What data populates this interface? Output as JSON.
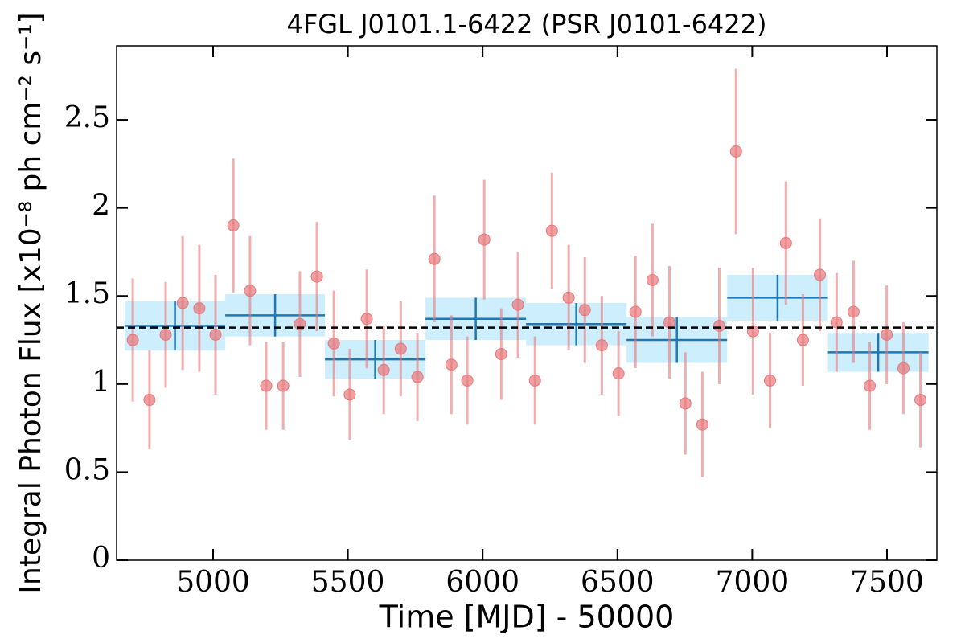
{
  "chart_data": {
    "type": "scatter",
    "title": "4FGL J0101.1-6422 (PSR J0101-6422)",
    "xlabel": "Time [MJD] - 50000",
    "ylabel": "Integral Photon Flux [x10⁻⁸ ph cm⁻² s⁻¹]",
    "xlim": [
      4642,
      7685
    ],
    "ylim": [
      0,
      2.92
    ],
    "xticks": [
      5000,
      5500,
      6000,
      6500,
      7000,
      7500
    ],
    "yticks": [
      0,
      0.5,
      1,
      1.5,
      2,
      2.5
    ],
    "series": [
      {
        "type": "scatter",
        "color": "#e8787a",
        "x": [
          4702,
          4764,
          4824,
          4887,
          4949,
          5009,
          5075,
          5137,
          5197,
          5260,
          5322,
          5385,
          5448,
          5507,
          5570,
          5633,
          5696,
          5758,
          5821,
          5884,
          5943,
          6006,
          6069,
          6131,
          6194,
          6257,
          6319,
          6379,
          6442,
          6504,
          6567,
          6630,
          6693,
          6752,
          6815,
          6878,
          6940,
          7003,
          7066,
          7125,
          7188,
          7251,
          7313,
          7376,
          7436,
          7499,
          7561,
          7624
        ],
        "values": [
          1.25,
          0.91,
          1.28,
          1.46,
          1.43,
          1.28,
          1.9,
          1.53,
          0.99,
          0.99,
          1.34,
          1.61,
          1.23,
          0.94,
          1.37,
          1.08,
          1.2,
          1.04,
          1.71,
          1.11,
          1.02,
          1.82,
          1.17,
          1.45,
          1.02,
          1.87,
          1.49,
          1.42,
          1.22,
          1.06,
          1.41,
          1.59,
          1.35,
          0.89,
          0.77,
          1.33,
          2.32,
          1.3,
          1.02,
          1.8,
          1.25,
          1.62,
          1.35,
          1.41,
          0.99,
          1.28,
          1.09,
          0.91
        ],
        "errors": [
          0.35,
          0.28,
          0.3,
          0.38,
          0.36,
          0.34,
          0.38,
          0.31,
          0.25,
          0.25,
          0.3,
          0.31,
          0.3,
          0.26,
          0.28,
          0.25,
          0.27,
          0.25,
          0.36,
          0.28,
          0.25,
          0.34,
          0.26,
          0.3,
          0.25,
          0.33,
          0.3,
          0.3,
          0.28,
          0.24,
          0.32,
          0.32,
          0.32,
          0.29,
          0.3,
          0.33,
          0.47,
          0.36,
          0.27,
          0.35,
          0.26,
          0.32,
          0.28,
          0.29,
          0.25,
          0.28,
          0.26,
          0.27
        ]
      },
      {
        "type": "binned",
        "color": "#1f77b4",
        "band_color": "#cdeefd",
        "bins": [
          4672,
          5045,
          5415,
          5788,
          6161,
          6534,
          6907,
          7281,
          7654
        ],
        "values": [
          1.33,
          1.39,
          1.14,
          1.37,
          1.34,
          1.25,
          1.49,
          1.18
        ],
        "errors": [
          0.14,
          0.12,
          0.11,
          0.12,
          0.12,
          0.13,
          0.13,
          0.11
        ]
      }
    ],
    "hline": {
      "value": 1.32,
      "color": "#000000"
    }
  }
}
